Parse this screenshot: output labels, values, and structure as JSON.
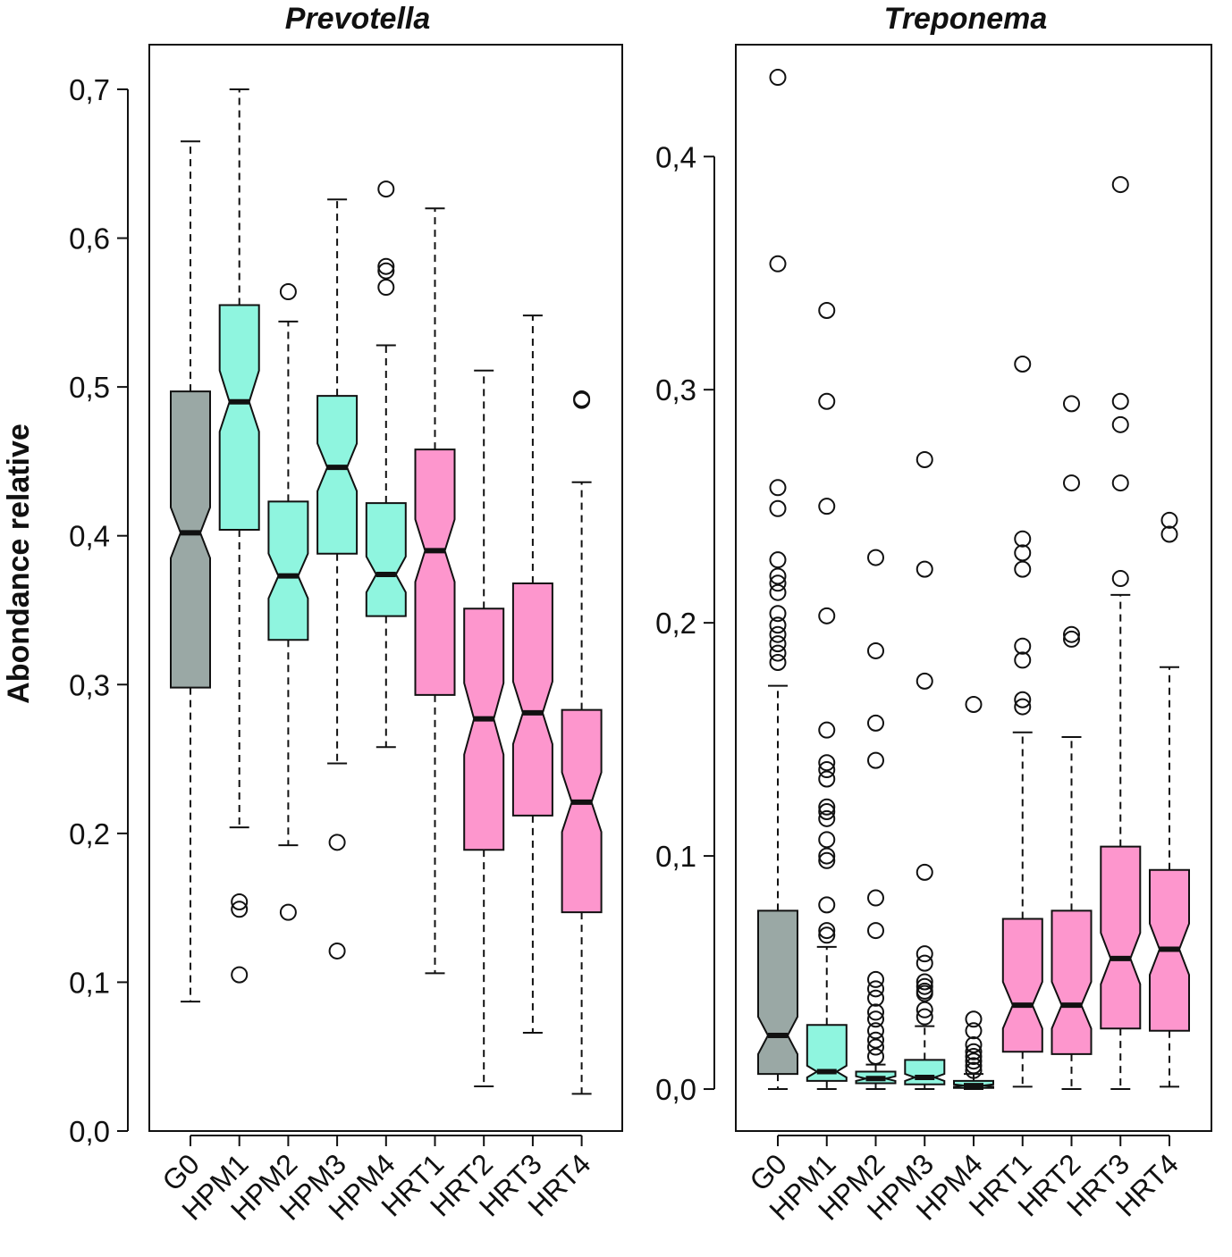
{
  "figure": {
    "ylabel": "Abondance relative",
    "colors": {
      "G0": "#9aa8a5",
      "HPM": "#8ff5df",
      "HRT": "#fd96cd",
      "stroke": "#111111"
    }
  },
  "chart_data": [
    {
      "type": "boxplot",
      "title": "Prevotella",
      "ylabel": "Abondance relative",
      "ylim": [
        0.0,
        0.73
      ],
      "yticks": [
        0.0,
        0.1,
        0.2,
        0.3,
        0.4,
        0.5,
        0.6,
        0.7
      ],
      "ytick_labels": [
        "0,0",
        "0,1",
        "0,2",
        "0,3",
        "0,4",
        "0,5",
        "0,6",
        "0,7"
      ],
      "categories": [
        "G0",
        "HPM1",
        "HPM2",
        "HPM3",
        "HPM4",
        "HRT1",
        "HRT2",
        "HRT3",
        "HRT4"
      ],
      "boxes": [
        {
          "name": "G0",
          "group": "G0",
          "q1": 0.298,
          "median": 0.402,
          "q3": 0.497,
          "notch_lo": 0.385,
          "notch_hi": 0.419,
          "whisker_lo": 0.087,
          "whisker_hi": 0.665,
          "outliers": []
        },
        {
          "name": "HPM1",
          "group": "HPM",
          "q1": 0.404,
          "median": 0.49,
          "q3": 0.555,
          "notch_lo": 0.47,
          "notch_hi": 0.511,
          "whisker_lo": 0.204,
          "whisker_hi": 0.7,
          "outliers": [
            0.154,
            0.149,
            0.105
          ]
        },
        {
          "name": "HPM2",
          "group": "HPM",
          "q1": 0.33,
          "median": 0.373,
          "q3": 0.423,
          "notch_lo": 0.358,
          "notch_hi": 0.388,
          "whisker_lo": 0.192,
          "whisker_hi": 0.544,
          "outliers": [
            0.564,
            0.147
          ]
        },
        {
          "name": "HPM3",
          "group": "HPM",
          "q1": 0.388,
          "median": 0.446,
          "q3": 0.494,
          "notch_lo": 0.43,
          "notch_hi": 0.462,
          "whisker_lo": 0.247,
          "whisker_hi": 0.626,
          "outliers": [
            0.194,
            0.121
          ]
        },
        {
          "name": "HPM4",
          "group": "HPM",
          "q1": 0.346,
          "median": 0.374,
          "q3": 0.422,
          "notch_lo": 0.362,
          "notch_hi": 0.386,
          "whisker_lo": 0.258,
          "whisker_hi": 0.528,
          "outliers": [
            0.633,
            0.581,
            0.578,
            0.567
          ]
        },
        {
          "name": "HRT1",
          "group": "HRT",
          "q1": 0.293,
          "median": 0.39,
          "q3": 0.458,
          "notch_lo": 0.369,
          "notch_hi": 0.411,
          "whisker_lo": 0.106,
          "whisker_hi": 0.62,
          "outliers": []
        },
        {
          "name": "HRT2",
          "group": "HRT",
          "q1": 0.189,
          "median": 0.277,
          "q3": 0.351,
          "notch_lo": 0.253,
          "notch_hi": 0.301,
          "whisker_lo": 0.03,
          "whisker_hi": 0.511,
          "outliers": []
        },
        {
          "name": "HRT3",
          "group": "HRT",
          "q1": 0.212,
          "median": 0.281,
          "q3": 0.368,
          "notch_lo": 0.26,
          "notch_hi": 0.302,
          "whisker_lo": 0.066,
          "whisker_hi": 0.548,
          "outliers": []
        },
        {
          "name": "HRT4",
          "group": "HRT",
          "q1": 0.147,
          "median": 0.221,
          "q3": 0.283,
          "notch_lo": 0.201,
          "notch_hi": 0.241,
          "whisker_lo": 0.025,
          "whisker_hi": 0.436,
          "outliers": [
            0.492,
            0.491
          ]
        }
      ]
    },
    {
      "type": "boxplot",
      "title": "Treponema",
      "ylabel": "",
      "ylim": [
        -0.018,
        0.448
      ],
      "yticks": [
        0.0,
        0.1,
        0.2,
        0.3,
        0.4
      ],
      "ytick_labels": [
        "0,0",
        "0,1",
        "0,2",
        "0,3",
        "0,4"
      ],
      "categories": [
        "G0",
        "HPM1",
        "HPM2",
        "HPM3",
        "HPM4",
        "HRT1",
        "HRT2",
        "HRT3",
        "HRT4"
      ],
      "boxes": [
        {
          "name": "G0",
          "group": "G0",
          "q1": 0.0065,
          "median": 0.023,
          "q3": 0.0765,
          "notch_lo": 0.015,
          "notch_hi": 0.031,
          "whisker_lo": 0.0,
          "whisker_hi": 0.173,
          "outliers": [
            0.434,
            0.354,
            0.258,
            0.249,
            0.227,
            0.22,
            0.217,
            0.213,
            0.204,
            0.199,
            0.195,
            0.191,
            0.187,
            0.183
          ]
        },
        {
          "name": "HPM1",
          "group": "HPM",
          "q1": 0.0035,
          "median": 0.0075,
          "q3": 0.0275,
          "notch_lo": 0.005,
          "notch_hi": 0.01,
          "whisker_lo": 0.0,
          "whisker_hi": 0.061,
          "outliers": [
            0.334,
            0.295,
            0.25,
            0.203,
            0.154,
            0.14,
            0.137,
            0.133,
            0.121,
            0.119,
            0.116,
            0.107,
            0.1,
            0.098,
            0.079,
            0.068,
            0.066
          ]
        },
        {
          "name": "HPM2",
          "group": "HPM",
          "q1": 0.0025,
          "median": 0.0045,
          "q3": 0.0075,
          "notch_lo": 0.0035,
          "notch_hi": 0.0055,
          "whisker_lo": 0.0,
          "whisker_hi": 0.0105,
          "outliers": [
            0.228,
            0.188,
            0.157,
            0.141,
            0.082,
            0.068,
            0.047,
            0.043,
            0.039,
            0.033,
            0.03,
            0.025,
            0.021,
            0.018,
            0.014
          ]
        },
        {
          "name": "HPM3",
          "group": "HPM",
          "q1": 0.002,
          "median": 0.005,
          "q3": 0.0125,
          "notch_lo": 0.0035,
          "notch_hi": 0.0065,
          "whisker_lo": 0.0,
          "whisker_hi": 0.027,
          "outliers": [
            0.27,
            0.223,
            0.175,
            0.093,
            0.058,
            0.054,
            0.046,
            0.044,
            0.042,
            0.041,
            0.034,
            0.031
          ]
        },
        {
          "name": "HPM4",
          "group": "HPM",
          "q1": 0.0005,
          "median": 0.0015,
          "q3": 0.0035,
          "notch_lo": 0.001,
          "notch_hi": 0.002,
          "whisker_lo": 0.0,
          "whisker_hi": 0.0065,
          "outliers": [
            0.165,
            0.03,
            0.025,
            0.019,
            0.016,
            0.014,
            0.012,
            0.01,
            0.008
          ]
        },
        {
          "name": "HRT1",
          "group": "HRT",
          "q1": 0.016,
          "median": 0.036,
          "q3": 0.073,
          "notch_lo": 0.026,
          "notch_hi": 0.046,
          "whisker_lo": 0.001,
          "whisker_hi": 0.153,
          "outliers": [
            0.311,
            0.236,
            0.23,
            0.223,
            0.19,
            0.184,
            0.167,
            0.164
          ]
        },
        {
          "name": "HRT2",
          "group": "HRT",
          "q1": 0.015,
          "median": 0.036,
          "q3": 0.0765,
          "notch_lo": 0.026,
          "notch_hi": 0.046,
          "whisker_lo": 0.0,
          "whisker_hi": 0.151,
          "outliers": [
            0.294,
            0.26,
            0.195,
            0.193
          ]
        },
        {
          "name": "HRT3",
          "group": "HRT",
          "q1": 0.026,
          "median": 0.056,
          "q3": 0.104,
          "notch_lo": 0.045,
          "notch_hi": 0.067,
          "whisker_lo": 0.0,
          "whisker_hi": 0.212,
          "outliers": [
            0.388,
            0.295,
            0.285,
            0.26,
            0.219
          ]
        },
        {
          "name": "HRT4",
          "group": "HRT",
          "q1": 0.025,
          "median": 0.06,
          "q3": 0.094,
          "notch_lo": 0.049,
          "notch_hi": 0.071,
          "whisker_lo": 0.001,
          "whisker_hi": 0.181,
          "outliers": [
            0.244,
            0.238
          ]
        }
      ]
    }
  ]
}
